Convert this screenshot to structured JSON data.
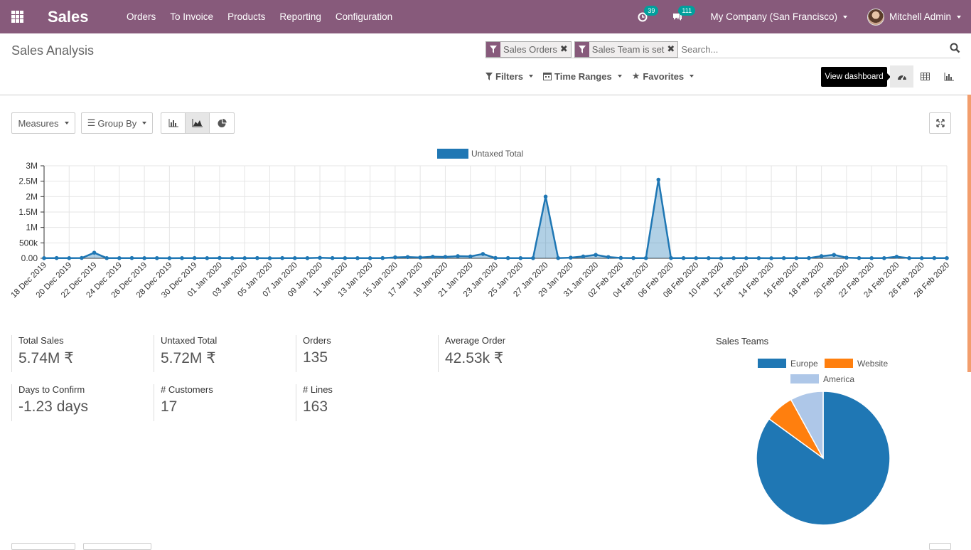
{
  "nav": {
    "brand": "Sales",
    "menu": [
      "Orders",
      "To Invoice",
      "Products",
      "Reporting",
      "Configuration"
    ],
    "activity_count": "39",
    "message_count": "111",
    "company": "My Company (San Francisco)",
    "user": "Mitchell Admin"
  },
  "control_panel": {
    "breadcrumb": "Sales Analysis",
    "facets": [
      "Sales Orders",
      "Sales Team is set"
    ],
    "search_placeholder": "Search...",
    "filters_label": "Filters",
    "time_ranges_label": "Time Ranges",
    "favorites_label": "Favorites",
    "tooltip": "View dashboard"
  },
  "toolbar": {
    "measures_label": "Measures",
    "group_by_label": "Group By"
  },
  "chart_data": [
    {
      "type": "area",
      "legend": [
        "Untaxed Total"
      ],
      "color": "#1f77b4",
      "yticks": [
        "0.00",
        "500k",
        "1M",
        "1.5M",
        "2M",
        "2.5M",
        "3M"
      ],
      "ylim": [
        0,
        3000000
      ],
      "x": [
        "18 Dec 2019",
        "19 Dec 2019",
        "20 Dec 2019",
        "21 Dec 2019",
        "22 Dec 2019",
        "23 Dec 2019",
        "24 Dec 2019",
        "25 Dec 2019",
        "26 Dec 2019",
        "27 Dec 2019",
        "28 Dec 2019",
        "29 Dec 2019",
        "30 Dec 2019",
        "31 Dec 2019",
        "01 Jan 2020",
        "02 Jan 2020",
        "03 Jan 2020",
        "04 Jan 2020",
        "05 Jan 2020",
        "06 Jan 2020",
        "07 Jan 2020",
        "08 Jan 2020",
        "09 Jan 2020",
        "10 Jan 2020",
        "11 Jan 2020",
        "12 Jan 2020",
        "13 Jan 2020",
        "14 Jan 2020",
        "15 Jan 2020",
        "16 Jan 2020",
        "17 Jan 2020",
        "18 Jan 2020",
        "19 Jan 2020",
        "20 Jan 2020",
        "21 Jan 2020",
        "22 Jan 2020",
        "23 Jan 2020",
        "24 Jan 2020",
        "25 Jan 2020",
        "26 Jan 2020",
        "27 Jan 2020",
        "28 Jan 2020",
        "29 Jan 2020",
        "30 Jan 2020",
        "31 Jan 2020",
        "01 Feb 2020",
        "02 Feb 2020",
        "03 Feb 2020",
        "04 Feb 2020",
        "05 Feb 2020",
        "06 Feb 2020",
        "07 Feb 2020",
        "08 Feb 2020",
        "09 Feb 2020",
        "10 Feb 2020",
        "11 Feb 2020",
        "12 Feb 2020",
        "13 Feb 2020",
        "14 Feb 2020",
        "15 Feb 2020",
        "16 Feb 2020",
        "17 Feb 2020",
        "18 Feb 2020",
        "19 Feb 2020",
        "20 Feb 2020",
        "21 Feb 2020",
        "22 Feb 2020",
        "23 Feb 2020",
        "24 Feb 2020",
        "25 Feb 2020",
        "26 Feb 2020",
        "27 Feb 2020",
        "28 Feb 2020"
      ],
      "xtick_labels": [
        "18 Dec 2019",
        "20 Dec 2019",
        "22 Dec 2019",
        "24 Dec 2019",
        "26 Dec 2019",
        "28 Dec 2019",
        "30 Dec 2019",
        "01 Jan 2020",
        "03 Jan 2020",
        "05 Jan 2020",
        "07 Jan 2020",
        "09 Jan 2020",
        "11 Jan 2020",
        "13 Jan 2020",
        "15 Jan 2020",
        "17 Jan 2020",
        "19 Jan 2020",
        "21 Jan 2020",
        "23 Jan 2020",
        "25 Jan 2020",
        "27 Jan 2020",
        "29 Jan 2020",
        "31 Jan 2020",
        "02 Feb 2020",
        "04 Feb 2020",
        "06 Feb 2020",
        "08 Feb 2020",
        "10 Feb 2020",
        "12 Feb 2020",
        "14 Feb 2020",
        "16 Feb 2020",
        "18 Feb 2020",
        "20 Feb 2020",
        "22 Feb 2020",
        "24 Feb 2020",
        "26 Feb 2020",
        "28 Feb 2020"
      ],
      "values": [
        5000,
        8000,
        4000,
        10000,
        180000,
        6000,
        5000,
        8000,
        4000,
        5000,
        3000,
        6000,
        8000,
        4000,
        10000,
        5000,
        4000,
        8000,
        3000,
        7000,
        6000,
        5000,
        15000,
        7000,
        5000,
        6000,
        4000,
        8000,
        30000,
        40000,
        25000,
        50000,
        45000,
        70000,
        60000,
        140000,
        10000,
        8000,
        6000,
        5000,
        2000000,
        7000,
        20000,
        60000,
        110000,
        40000,
        12000,
        8000,
        6000,
        2550000,
        8000,
        6000,
        4000,
        5000,
        3000,
        6000,
        4000,
        5000,
        3000,
        6000,
        5000,
        8000,
        70000,
        110000,
        20000,
        8000,
        6000,
        5000,
        50000,
        6000,
        4000,
        8000,
        5000
      ]
    },
    {
      "type": "pie",
      "title": "Sales Teams",
      "legend": [
        "Europe",
        "Website",
        "America"
      ],
      "colors": [
        "#1f77b4",
        "#ff7f0e",
        "#aec7e8"
      ],
      "values": [
        85,
        7,
        8
      ]
    }
  ],
  "aggregates": [
    {
      "label": "Total Sales",
      "value": "5.74M ₹"
    },
    {
      "label": "Untaxed Total",
      "value": "5.72M ₹"
    },
    {
      "label": "Orders",
      "value": "135"
    },
    {
      "label": "Average Order",
      "value": "42.53k ₹"
    },
    {
      "label": "Days to Confirm",
      "value": "-1.23 days"
    },
    {
      "label": "# Customers",
      "value": "17"
    },
    {
      "label": "# Lines",
      "value": "163"
    }
  ]
}
